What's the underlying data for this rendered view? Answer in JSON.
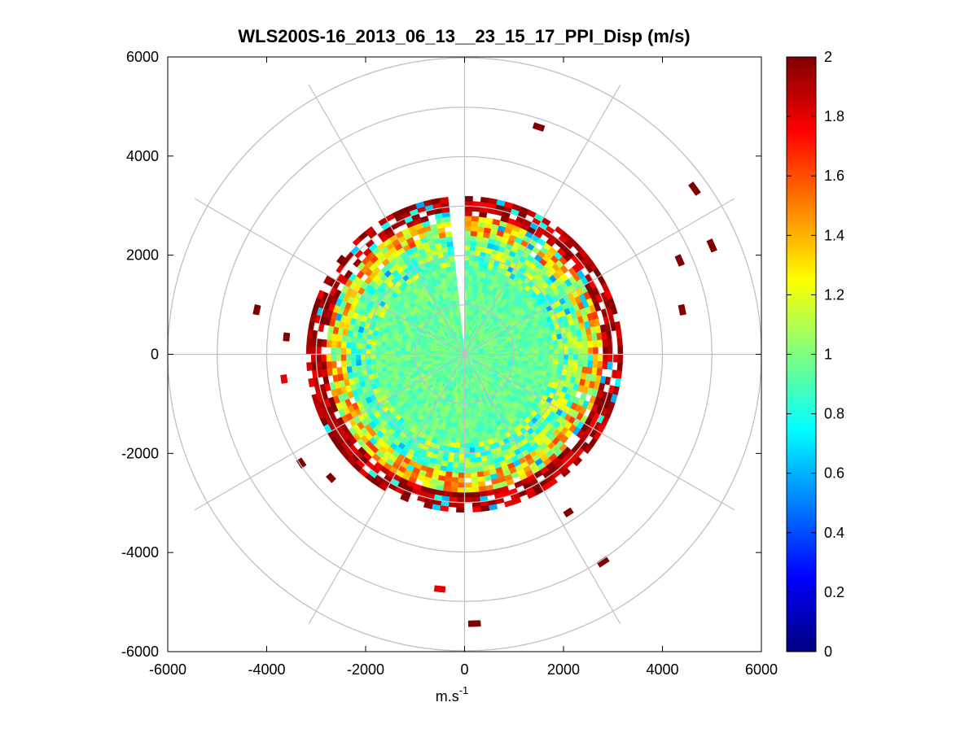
{
  "figure": {
    "title": "WLS200S-16_2013_06_13__23_15_17_PPI_Disp (m/s)",
    "xlabel_base": "m.s",
    "xlabel_sup": "-1"
  },
  "chart_data": {
    "type": "heatmap",
    "subtype": "polar-ppi",
    "title": "WLS200S-16_2013_06_13__23_15_17_PPI_Disp (m/s)",
    "xlabel": "m.s-1",
    "ylabel": "",
    "xlim": [
      -6000,
      6000
    ],
    "ylim": [
      -6000,
      6000
    ],
    "xticks": [
      -6000,
      -4000,
      -2000,
      0,
      2000,
      4000,
      6000
    ],
    "yticks": [
      6000,
      4000,
      2000,
      0,
      -2000,
      -4000,
      -6000
    ],
    "xtick_labels": [
      "-6000",
      "-4000",
      "-2000",
      "0",
      "2000",
      "4000",
      "6000"
    ],
    "ytick_labels": [
      "6000",
      "4000",
      "2000",
      "0",
      "-2000",
      "-4000",
      "-6000"
    ],
    "polar_grid": {
      "rings": [
        1000,
        2000,
        3000,
        4000,
        5000,
        6000
      ],
      "spoke_step_deg": 30
    },
    "gap_azimuth_deg": [
      355,
      360
    ],
    "colormap": "jet",
    "colorbar": {
      "min": 0,
      "max": 2,
      "ticks": [
        0,
        0.2,
        0.4,
        0.6,
        0.8,
        1,
        1.2,
        1.4,
        1.6,
        1.8,
        2
      ],
      "tick_labels": [
        "0",
        "0.2",
        "0.4",
        "0.6",
        "0.8",
        "1",
        "1.2",
        "1.4",
        "1.6",
        "1.8",
        "2"
      ]
    },
    "range_profile": [
      {
        "range_min": 0,
        "range_max": 1800,
        "value_center": 0.95,
        "spread": 0.1
      },
      {
        "range_min": 1800,
        "range_max": 2400,
        "value_center": 1.0,
        "spread": 0.25
      },
      {
        "range_min": 2400,
        "range_max": 2800,
        "value_center": 1.3,
        "spread": 0.35
      },
      {
        "range_min": 2800,
        "range_max": 3200,
        "value_center": 1.9,
        "spread": 0.15
      }
    ],
    "isolated_returns": [
      {
        "x": 1500,
        "y": 4600,
        "value": 2.0
      },
      {
        "x": 4650,
        "y": 3350,
        "value": 2.0
      },
      {
        "x": 5000,
        "y": 2200,
        "value": 2.0
      },
      {
        "x": 4350,
        "y": 1900,
        "value": 2.0
      },
      {
        "x": 4400,
        "y": 900,
        "value": 2.0
      },
      {
        "x": -4200,
        "y": 900,
        "value": 2.0
      },
      {
        "x": -3600,
        "y": 350,
        "value": 2.0
      },
      {
        "x": -3650,
        "y": -500,
        "value": 1.8
      },
      {
        "x": -3300,
        "y": -2200,
        "value": 2.0
      },
      {
        "x": -2700,
        "y": -2500,
        "value": 2.0
      },
      {
        "x": 2100,
        "y": -3200,
        "value": 2.0
      },
      {
        "x": 2800,
        "y": -4200,
        "value": 2.0
      },
      {
        "x": -500,
        "y": -4750,
        "value": 1.8
      },
      {
        "x": 200,
        "y": -5450,
        "value": 2.0
      }
    ]
  }
}
